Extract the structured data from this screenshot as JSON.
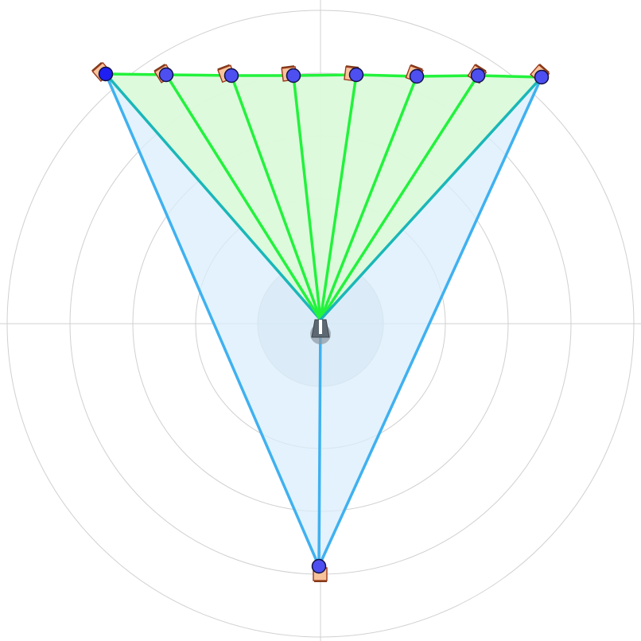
{
  "scene": {
    "radial_grid_rings": 5,
    "colors": {
      "background": "#ffffff",
      "grid": "#d0d0d0",
      "listener_zone": "#c7d3e2",
      "listener": "#5d6872",
      "tri_fill": "#d9eefb",
      "tri_edge": "#3fb1f0",
      "fan_fill": "#dcfbd6",
      "fan_edge": "#22f23c",
      "mix_edge": "#1ab7b8",
      "speaker_fill": "#f7c39b",
      "speaker_edge": "#9a3a1f",
      "source_fill": "#4e4ff0",
      "source_edge": "#111144"
    },
    "icons": {
      "listener": "listener-head-icon",
      "speaker": "speaker-square-icon",
      "source": "source-dot-icon"
    },
    "front_arc_sources": 8,
    "rear_sources": 1
  }
}
